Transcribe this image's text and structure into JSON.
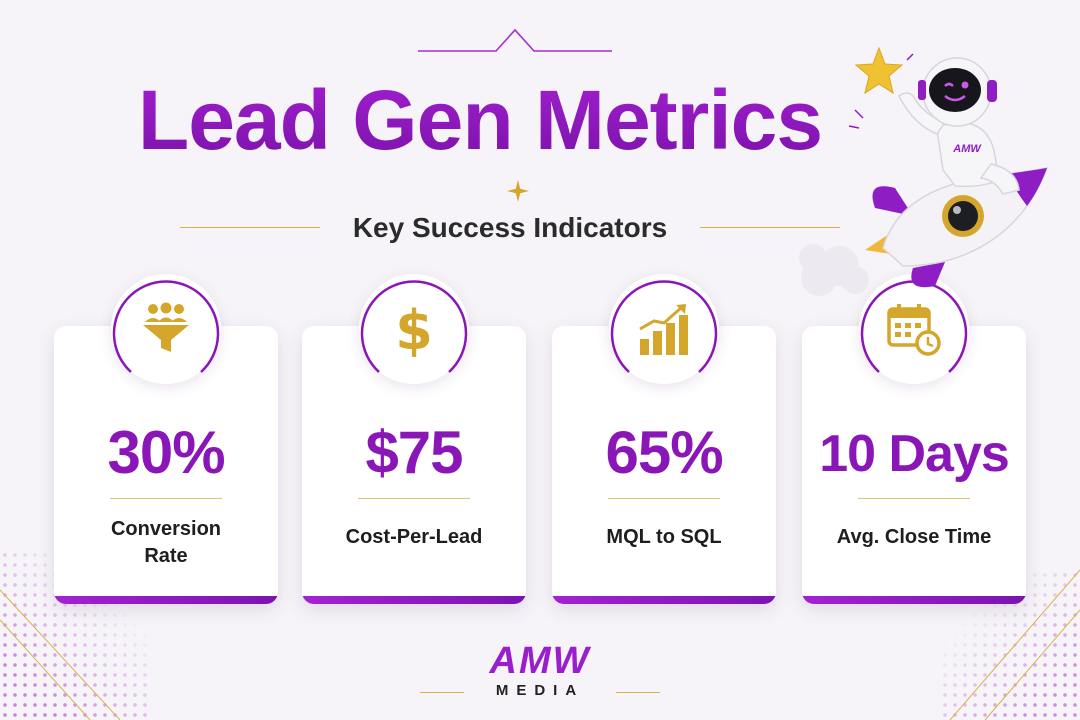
{
  "header": {
    "title": "Lead Gen Metrics",
    "subtitle": "Key Success Indicators"
  },
  "metrics": [
    {
      "value": "30%",
      "label": "Conversion Rate",
      "icon": "funnel-people-icon"
    },
    {
      "value": "$75",
      "label": "Cost-Per-Lead",
      "icon": "dollar-sign-icon"
    },
    {
      "value": "65%",
      "label": "MQL to SQL",
      "icon": "growth-chart-icon"
    },
    {
      "value": "10 Days",
      "label": "Avg. Close Time",
      "icon": "calendar-clock-icon"
    }
  ],
  "mascot": {
    "badge": "AMW"
  },
  "logo": {
    "name": "AMW",
    "sub": "MEDIA"
  },
  "colors": {
    "primary": "#8a16b8",
    "accent_gold": "#d8b34a",
    "background": "#f6f4f8"
  }
}
